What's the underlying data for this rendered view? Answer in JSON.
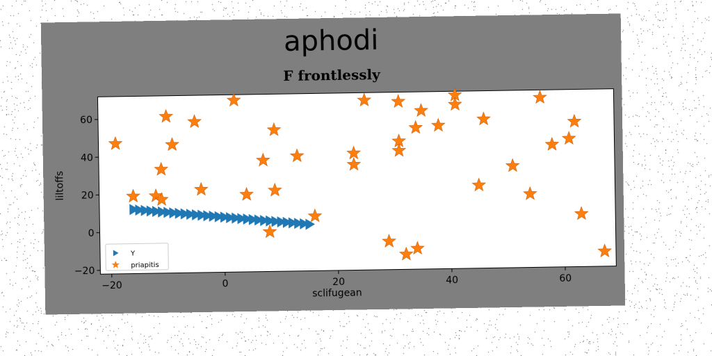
{
  "title": "aphodi",
  "subtitle": "F frontlessly",
  "colors": {
    "panel": "#7f7f7f",
    "plot_bg": "#ffffff",
    "series_y": "#1f77b4",
    "series_priapitis": "#ff7f0e"
  },
  "chart_data": {
    "type": "scatter",
    "title": "aphodi",
    "subtitle": "F frontlessly",
    "xlabel": "sclifugean",
    "ylabel": "liltoffs",
    "xlim": [
      -22,
      69
    ],
    "ylim": [
      -22,
      72
    ],
    "xticks": [
      -20,
      0,
      20,
      40,
      60
    ],
    "yticks": [
      -20,
      0,
      20,
      40,
      60
    ],
    "grid": false,
    "legend_position": "lower-left",
    "series": [
      {
        "name": "Y",
        "marker": "triangle-right",
        "color": "#1f77b4",
        "x": [
          -16,
          -15,
          -14,
          -13,
          -12,
          -11,
          -10,
          -9,
          -8,
          -7,
          -6,
          -5,
          -4,
          -3,
          -2,
          -1,
          0,
          1,
          2,
          3,
          4,
          5,
          6,
          7,
          8,
          9,
          10,
          11,
          12,
          13,
          14,
          15
        ],
        "y": [
          12,
          11.7,
          11.4,
          11.1,
          10.8,
          10.5,
          10.2,
          9.9,
          9.6,
          9.3,
          9.0,
          8.7,
          8.4,
          8.1,
          7.8,
          7.5,
          7.2,
          6.9,
          6.6,
          6.3,
          6.0,
          5.7,
          5.4,
          5.1,
          4.8,
          4.5,
          4.2,
          3.9,
          3.6,
          3.3,
          3.0,
          2.7
        ]
      },
      {
        "name": "priapitis",
        "marker": "star",
        "color": "#ff7f0e",
        "x": [
          -19,
          -16,
          -12,
          -11,
          -11,
          -10,
          -9,
          -5,
          -4,
          2,
          4,
          7,
          8,
          9,
          9,
          13,
          16,
          23,
          23,
          25,
          29,
          31,
          31,
          31,
          32,
          34,
          34,
          35,
          38,
          41,
          41,
          45,
          46,
          51,
          54,
          56,
          58,
          61,
          62,
          63,
          67
        ],
        "y": [
          47,
          19,
          19,
          17,
          33,
          61,
          46,
          58,
          22,
          69,
          19,
          37,
          -1,
          53,
          21,
          39,
          7,
          40,
          34,
          68,
          -7,
          41,
          46,
          67,
          -14,
          53,
          -11,
          62,
          54,
          70,
          65,
          22,
          57,
          32,
          17,
          68,
          43,
          46,
          55,
          6,
          -14
        ]
      }
    ]
  }
}
